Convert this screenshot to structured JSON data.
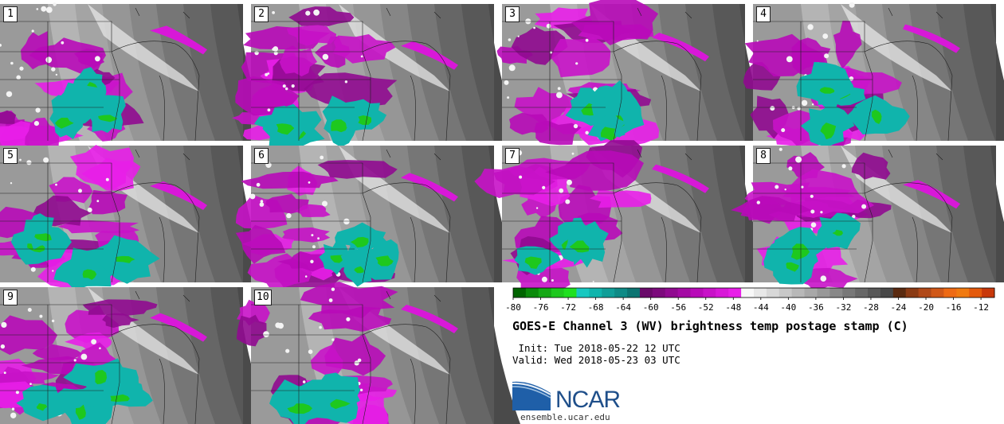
{
  "panels": [
    {
      "label": "1"
    },
    {
      "label": "2"
    },
    {
      "label": "3"
    },
    {
      "label": "4"
    },
    {
      "label": "5"
    },
    {
      "label": "6"
    },
    {
      "label": "7"
    },
    {
      "label": "8"
    },
    {
      "label": "9"
    },
    {
      "label": "10"
    }
  ],
  "colorbar": {
    "ticks": [
      "-80",
      "-76",
      "-72",
      "-68",
      "-64",
      "-60",
      "-56",
      "-52",
      "-48",
      "-44",
      "-40",
      "-36",
      "-32",
      "-28",
      "-24",
      "-20",
      "-16",
      "-12"
    ],
    "colors": [
      "#006400",
      "#0a8a0a",
      "#14a814",
      "#1ec81e",
      "#20e020",
      "#18c8c0",
      "#10b4ac",
      "#109e98",
      "#0e8a86",
      "#0c7472",
      "#6a0a6a",
      "#7c0a7c",
      "#900a90",
      "#a40aa4",
      "#b80ab8",
      "#c812c8",
      "#d818d8",
      "#e81ee8",
      "#f8f8f8",
      "#e8e8e8",
      "#d8d8d8",
      "#c8c8c8",
      "#b8b8b8",
      "#a8a8a8",
      "#989898",
      "#888888",
      "#787878",
      "#686868",
      "#585858",
      "#484848",
      "#5a2a10",
      "#8a3a14",
      "#b04818",
      "#d05818",
      "#ee6a14",
      "#f07a10",
      "#e45a0c",
      "#c8380a"
    ]
  },
  "title": "GOES-E Channel 3 (WV) brightness temp postage stamp (C)",
  "init": " Init: Tue 2018-05-22 12 UTC",
  "valid": "Valid: Wed 2018-05-23 03 UTC",
  "logo": {
    "name": "NCAR",
    "url": "ensemble.ucar.edu"
  }
}
